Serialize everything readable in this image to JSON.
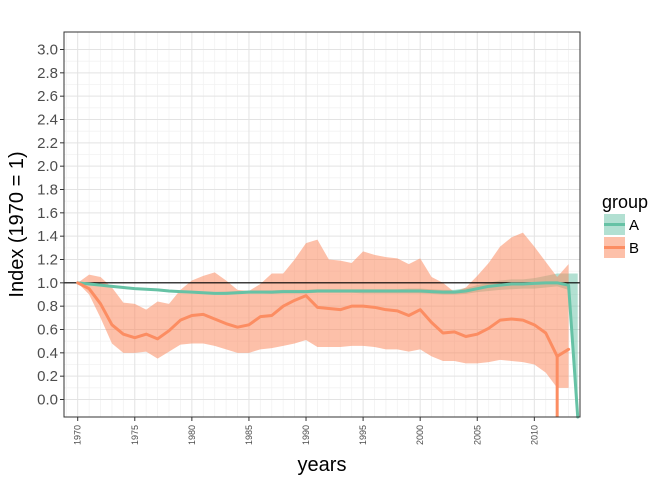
{
  "chart_data": {
    "type": "line",
    "title": "",
    "xlabel": "years",
    "ylabel": "Index (1970 = 1)",
    "xlim": [
      1968.8,
      2014.0
    ],
    "ylim": [
      -0.15,
      3.15
    ],
    "x_ticks": [
      1970,
      1975,
      1980,
      1985,
      1990,
      1995,
      2000,
      2005,
      2010
    ],
    "x_tick_labels": [
      "1970",
      "1975",
      "1980",
      "1985",
      "1990",
      "1995",
      "2000",
      "2005",
      "2010"
    ],
    "y_ticks": [
      0.0,
      0.2,
      0.4,
      0.6,
      0.8,
      1.0,
      1.2,
      1.4,
      1.6,
      1.8,
      2.0,
      2.2,
      2.4,
      2.6,
      2.8,
      3.0
    ],
    "y_tick_labels": [
      "0.0",
      "0.2",
      "0.4",
      "0.6",
      "0.8",
      "1.0",
      "1.2",
      "1.4",
      "1.6",
      "1.8",
      "2.0",
      "2.2",
      "2.4",
      "2.6",
      "2.8",
      "3.0"
    ],
    "reference_line": 1.0,
    "grid": true,
    "legend": {
      "title": "group",
      "position": "right"
    },
    "series": [
      {
        "name": "A",
        "color": "#66c2a5",
        "x": [
          1970,
          1971,
          1972,
          1973,
          1974,
          1975,
          1976,
          1977,
          1978,
          1979,
          1980,
          1981,
          1982,
          1983,
          1984,
          1985,
          1986,
          1987,
          1988,
          1989,
          1990,
          1991,
          1992,
          1993,
          1994,
          1995,
          1996,
          1997,
          1998,
          1999,
          2000,
          2001,
          2002,
          2003,
          2004,
          2005,
          2006,
          2007,
          2008,
          2009,
          2010,
          2011,
          2012,
          2013,
          2013.8
        ],
        "values": [
          1.0,
          0.99,
          0.98,
          0.97,
          0.96,
          0.95,
          0.945,
          0.94,
          0.93,
          0.925,
          0.92,
          0.915,
          0.91,
          0.91,
          0.915,
          0.92,
          0.92,
          0.92,
          0.925,
          0.925,
          0.925,
          0.93,
          0.93,
          0.93,
          0.93,
          0.93,
          0.93,
          0.93,
          0.93,
          0.93,
          0.93,
          0.925,
          0.92,
          0.92,
          0.93,
          0.95,
          0.97,
          0.98,
          0.99,
          0.99,
          0.995,
          1.0,
          1.0,
          0.98,
          -0.15
        ],
        "lower": [
          1.0,
          0.99,
          0.98,
          0.97,
          0.96,
          0.95,
          0.945,
          0.94,
          0.93,
          0.925,
          0.91,
          0.905,
          0.9,
          0.9,
          0.905,
          0.91,
          0.91,
          0.905,
          0.91,
          0.91,
          0.91,
          0.915,
          0.915,
          0.915,
          0.915,
          0.91,
          0.91,
          0.91,
          0.91,
          0.91,
          0.91,
          0.905,
          0.9,
          0.9,
          0.905,
          0.92,
          0.93,
          0.94,
          0.945,
          0.95,
          0.95,
          0.96,
          0.97,
          0.94,
          -0.15
        ],
        "upper": [
          1.0,
          0.99,
          0.98,
          0.97,
          0.96,
          0.95,
          0.945,
          0.94,
          0.93,
          0.925,
          0.93,
          0.925,
          0.92,
          0.925,
          0.93,
          0.935,
          0.935,
          0.935,
          0.94,
          0.94,
          0.94,
          0.945,
          0.945,
          0.945,
          0.945,
          0.945,
          0.945,
          0.945,
          0.945,
          0.95,
          0.95,
          0.945,
          0.94,
          0.94,
          0.955,
          0.98,
          1.0,
          1.02,
          1.03,
          1.03,
          1.04,
          1.06,
          1.08,
          1.08,
          1.08
        ]
      },
      {
        "name": "B",
        "color": "#fc8d62",
        "x": [
          1970,
          1971,
          1972,
          1973,
          1974,
          1975,
          1976,
          1977,
          1978,
          1979,
          1980,
          1981,
          1982,
          1983,
          1984,
          1985,
          1986,
          1987,
          1988,
          1989,
          1990,
          1991,
          1992,
          1993,
          1994,
          1995,
          1996,
          1997,
          1998,
          1999,
          2000,
          2001,
          2002,
          2003,
          2004,
          2005,
          2006,
          2007,
          2008,
          2009,
          2010,
          2011,
          2012,
          2013
        ],
        "values": [
          1.0,
          0.95,
          0.82,
          0.64,
          0.56,
          0.53,
          0.56,
          0.52,
          0.59,
          0.68,
          0.72,
          0.73,
          0.69,
          0.65,
          0.62,
          0.64,
          0.71,
          0.72,
          0.8,
          0.85,
          0.89,
          0.79,
          0.78,
          0.77,
          0.8,
          0.8,
          0.79,
          0.77,
          0.76,
          0.72,
          0.77,
          0.66,
          0.57,
          0.58,
          0.54,
          0.56,
          0.61,
          0.68,
          0.69,
          0.68,
          0.64,
          0.57,
          0.37,
          0.43
        ],
        "lower": [
          1.0,
          0.9,
          0.7,
          0.48,
          0.4,
          0.4,
          0.41,
          0.35,
          0.41,
          0.47,
          0.48,
          0.48,
          0.46,
          0.43,
          0.4,
          0.4,
          0.43,
          0.44,
          0.46,
          0.48,
          0.51,
          0.45,
          0.45,
          0.45,
          0.46,
          0.46,
          0.45,
          0.43,
          0.43,
          0.41,
          0.43,
          0.37,
          0.33,
          0.33,
          0.31,
          0.31,
          0.32,
          0.34,
          0.33,
          0.32,
          0.3,
          0.23,
          0.1,
          0.1
        ],
        "upper": [
          1.0,
          1.07,
          1.05,
          0.96,
          0.83,
          0.82,
          0.77,
          0.84,
          0.82,
          0.94,
          1.02,
          1.06,
          1.09,
          1.02,
          0.94,
          0.93,
          0.99,
          1.08,
          1.08,
          1.2,
          1.34,
          1.37,
          1.2,
          1.19,
          1.17,
          1.27,
          1.24,
          1.22,
          1.21,
          1.16,
          1.21,
          1.05,
          1.0,
          0.92,
          0.96,
          1.06,
          1.17,
          1.31,
          1.39,
          1.43,
          1.31,
          1.18,
          1.05,
          1.16
        ],
        "final_drop_to": -0.15
      }
    ]
  }
}
